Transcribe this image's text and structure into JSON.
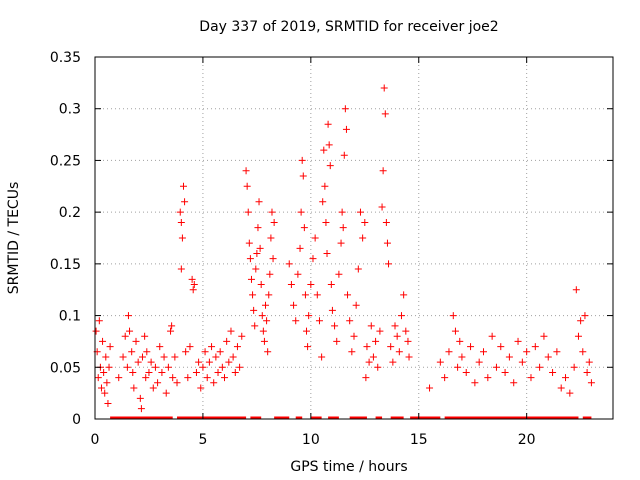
{
  "chart_data": {
    "type": "scatter",
    "title": "Day 337 of 2019, SRMTID for receiver joe2",
    "xlabel": "GPS time / hours",
    "ylabel": "SRMTID / TECUs",
    "xlim": [
      0,
      24
    ],
    "ylim": [
      0,
      0.35
    ],
    "xticks": [
      0,
      5,
      10,
      15,
      20
    ],
    "yticks": [
      0,
      0.05,
      0.1,
      0.15,
      0.2,
      0.25,
      0.3,
      0.35
    ],
    "xtick_labels": [
      "0",
      "5",
      "10",
      "15",
      "20"
    ],
    "ytick_labels": [
      "0",
      "0.05",
      "0.1",
      "0.15",
      "0.2",
      "0.25",
      "0.3",
      "0.35"
    ],
    "grid": true,
    "marker": "+",
    "color": "#ff0000",
    "series": [
      {
        "name": "SRMTID",
        "points": [
          [
            0.05,
            0.085
          ],
          [
            0.1,
            0.065
          ],
          [
            0.15,
            0.04
          ],
          [
            0.2,
            0.095
          ],
          [
            0.25,
            0.05
          ],
          [
            0.3,
            0.03
          ],
          [
            0.35,
            0.075
          ],
          [
            0.4,
            0.045
          ],
          [
            0.45,
            0.025
          ],
          [
            0.5,
            0.06
          ],
          [
            0.55,
            0.035
          ],
          [
            0.6,
            0.015
          ],
          [
            0.65,
            0.05
          ],
          [
            0.7,
            0.07
          ],
          [
            1.1,
            0.04
          ],
          [
            1.3,
            0.06
          ],
          [
            1.4,
            0.08
          ],
          [
            1.5,
            0.05
          ],
          [
            1.55,
            0.1
          ],
          [
            1.6,
            0.085
          ],
          [
            1.7,
            0.065
          ],
          [
            1.75,
            0.045
          ],
          [
            1.8,
            0.03
          ],
          [
            1.9,
            0.075
          ],
          [
            2.0,
            0.055
          ],
          [
            2.1,
            0.02
          ],
          [
            2.15,
            0.01
          ],
          [
            2.2,
            0.06
          ],
          [
            2.3,
            0.08
          ],
          [
            2.35,
            0.04
          ],
          [
            2.4,
            0.065
          ],
          [
            2.5,
            0.045
          ],
          [
            2.6,
            0.055
          ],
          [
            2.7,
            0.03
          ],
          [
            2.8,
            0.05
          ],
          [
            2.9,
            0.035
          ],
          [
            3.0,
            0.07
          ],
          [
            3.1,
            0.045
          ],
          [
            3.2,
            0.06
          ],
          [
            3.3,
            0.025
          ],
          [
            3.4,
            0.05
          ],
          [
            3.5,
            0.085
          ],
          [
            3.55,
            0.09
          ],
          [
            3.6,
            0.04
          ],
          [
            3.7,
            0.06
          ],
          [
            3.8,
            0.035
          ],
          [
            3.95,
            0.2
          ],
          [
            4.0,
            0.19
          ],
          [
            4.05,
            0.175
          ],
          [
            4.1,
            0.225
          ],
          [
            4.15,
            0.21
          ],
          [
            4.0,
            0.145
          ],
          [
            4.2,
            0.065
          ],
          [
            4.3,
            0.04
          ],
          [
            4.4,
            0.07
          ],
          [
            4.5,
            0.135
          ],
          [
            4.55,
            0.125
          ],
          [
            4.6,
            0.13
          ],
          [
            4.7,
            0.045
          ],
          [
            4.8,
            0.055
          ],
          [
            4.9,
            0.03
          ],
          [
            5.0,
            0.05
          ],
          [
            5.1,
            0.065
          ],
          [
            5.2,
            0.04
          ],
          [
            5.3,
            0.055
          ],
          [
            5.4,
            0.07
          ],
          [
            5.5,
            0.035
          ],
          [
            5.6,
            0.06
          ],
          [
            5.7,
            0.045
          ],
          [
            5.8,
            0.065
          ],
          [
            5.9,
            0.05
          ],
          [
            6.0,
            0.04
          ],
          [
            6.1,
            0.075
          ],
          [
            6.2,
            0.055
          ],
          [
            6.3,
            0.085
          ],
          [
            6.4,
            0.06
          ],
          [
            6.5,
            0.045
          ],
          [
            6.6,
            0.07
          ],
          [
            6.7,
            0.05
          ],
          [
            6.8,
            0.08
          ],
          [
            7.0,
            0.24
          ],
          [
            7.05,
            0.225
          ],
          [
            7.1,
            0.2
          ],
          [
            7.15,
            0.17
          ],
          [
            7.2,
            0.155
          ],
          [
            7.25,
            0.135
          ],
          [
            7.3,
            0.12
          ],
          [
            7.35,
            0.105
          ],
          [
            7.4,
            0.09
          ],
          [
            7.45,
            0.145
          ],
          [
            7.5,
            0.16
          ],
          [
            7.55,
            0.185
          ],
          [
            7.6,
            0.21
          ],
          [
            7.65,
            0.165
          ],
          [
            7.7,
            0.13
          ],
          [
            7.75,
            0.1
          ],
          [
            7.8,
            0.085
          ],
          [
            7.85,
            0.075
          ],
          [
            7.9,
            0.11
          ],
          [
            7.95,
            0.095
          ],
          [
            8.0,
            0.065
          ],
          [
            8.05,
            0.12
          ],
          [
            8.1,
            0.14
          ],
          [
            8.15,
            0.175
          ],
          [
            8.2,
            0.2
          ],
          [
            8.25,
            0.155
          ],
          [
            8.3,
            0.19
          ],
          [
            9.0,
            0.15
          ],
          [
            9.1,
            0.13
          ],
          [
            9.2,
            0.11
          ],
          [
            9.3,
            0.095
          ],
          [
            9.4,
            0.14
          ],
          [
            9.5,
            0.165
          ],
          [
            9.55,
            0.2
          ],
          [
            9.6,
            0.25
          ],
          [
            9.65,
            0.235
          ],
          [
            9.7,
            0.185
          ],
          [
            9.75,
            0.12
          ],
          [
            9.8,
            0.085
          ],
          [
            9.85,
            0.07
          ],
          [
            9.9,
            0.1
          ],
          [
            10.0,
            0.13
          ],
          [
            10.1,
            0.155
          ],
          [
            10.2,
            0.175
          ],
          [
            10.3,
            0.12
          ],
          [
            10.4,
            0.095
          ],
          [
            10.5,
            0.06
          ],
          [
            10.55,
            0.21
          ],
          [
            10.6,
            0.26
          ],
          [
            10.65,
            0.225
          ],
          [
            10.7,
            0.19
          ],
          [
            10.75,
            0.16
          ],
          [
            10.8,
            0.285
          ],
          [
            10.85,
            0.265
          ],
          [
            10.9,
            0.245
          ],
          [
            10.95,
            0.13
          ],
          [
            11.0,
            0.105
          ],
          [
            11.1,
            0.09
          ],
          [
            11.2,
            0.075
          ],
          [
            11.3,
            0.14
          ],
          [
            11.4,
            0.17
          ],
          [
            11.45,
            0.2
          ],
          [
            11.5,
            0.185
          ],
          [
            11.55,
            0.255
          ],
          [
            11.6,
            0.3
          ],
          [
            11.65,
            0.28
          ],
          [
            11.7,
            0.12
          ],
          [
            11.8,
            0.095
          ],
          [
            11.9,
            0.065
          ],
          [
            12.0,
            0.08
          ],
          [
            12.1,
            0.11
          ],
          [
            12.2,
            0.145
          ],
          [
            12.3,
            0.2
          ],
          [
            12.4,
            0.175
          ],
          [
            12.5,
            0.19
          ],
          [
            12.55,
            0.04
          ],
          [
            12.6,
            0.07
          ],
          [
            12.7,
            0.055
          ],
          [
            12.8,
            0.09
          ],
          [
            12.9,
            0.06
          ],
          [
            13.0,
            0.075
          ],
          [
            13.1,
            0.05
          ],
          [
            13.2,
            0.085
          ],
          [
            13.3,
            0.205
          ],
          [
            13.35,
            0.24
          ],
          [
            13.4,
            0.32
          ],
          [
            13.45,
            0.295
          ],
          [
            13.5,
            0.19
          ],
          [
            13.55,
            0.17
          ],
          [
            13.6,
            0.15
          ],
          [
            13.7,
            0.07
          ],
          [
            13.8,
            0.055
          ],
          [
            13.9,
            0.09
          ],
          [
            14.0,
            0.08
          ],
          [
            14.1,
            0.065
          ],
          [
            14.2,
            0.1
          ],
          [
            14.3,
            0.12
          ],
          [
            14.4,
            0.085
          ],
          [
            14.5,
            0.075
          ],
          [
            14.55,
            0.06
          ],
          [
            15.5,
            0.03
          ],
          [
            16.0,
            0.055
          ],
          [
            16.2,
            0.04
          ],
          [
            16.4,
            0.065
          ],
          [
            16.6,
            0.1
          ],
          [
            16.7,
            0.085
          ],
          [
            16.8,
            0.05
          ],
          [
            16.9,
            0.075
          ],
          [
            17.0,
            0.06
          ],
          [
            17.2,
            0.045
          ],
          [
            17.4,
            0.07
          ],
          [
            17.6,
            0.035
          ],
          [
            17.8,
            0.055
          ],
          [
            18.0,
            0.065
          ],
          [
            18.2,
            0.04
          ],
          [
            18.4,
            0.08
          ],
          [
            18.6,
            0.05
          ],
          [
            18.8,
            0.07
          ],
          [
            19.0,
            0.045
          ],
          [
            19.2,
            0.06
          ],
          [
            19.4,
            0.035
          ],
          [
            19.6,
            0.075
          ],
          [
            19.8,
            0.055
          ],
          [
            20.0,
            0.065
          ],
          [
            20.2,
            0.04
          ],
          [
            20.4,
            0.07
          ],
          [
            20.6,
            0.05
          ],
          [
            20.8,
            0.08
          ],
          [
            21.0,
            0.06
          ],
          [
            21.2,
            0.045
          ],
          [
            21.4,
            0.065
          ],
          [
            21.6,
            0.03
          ],
          [
            21.8,
            0.04
          ],
          [
            22.0,
            0.025
          ],
          [
            22.2,
            0.05
          ],
          [
            22.3,
            0.125
          ],
          [
            22.4,
            0.08
          ],
          [
            22.5,
            0.095
          ],
          [
            22.6,
            0.065
          ],
          [
            22.7,
            0.1
          ],
          [
            22.8,
            0.045
          ],
          [
            22.9,
            0.055
          ],
          [
            23.0,
            0.035
          ]
        ]
      }
    ],
    "zero_segments": [
      [
        0.7,
        3.6
      ],
      [
        3.8,
        7.0
      ],
      [
        7.2,
        7.7
      ],
      [
        8.3,
        9.0
      ],
      [
        9.3,
        9.6
      ],
      [
        10.0,
        10.5
      ],
      [
        10.8,
        11.3
      ],
      [
        11.8,
        12.6
      ],
      [
        13.0,
        13.3
      ],
      [
        13.7,
        14.3
      ],
      [
        14.6,
        16.0
      ],
      [
        16.2,
        22.4
      ],
      [
        22.6,
        23.0
      ]
    ]
  }
}
